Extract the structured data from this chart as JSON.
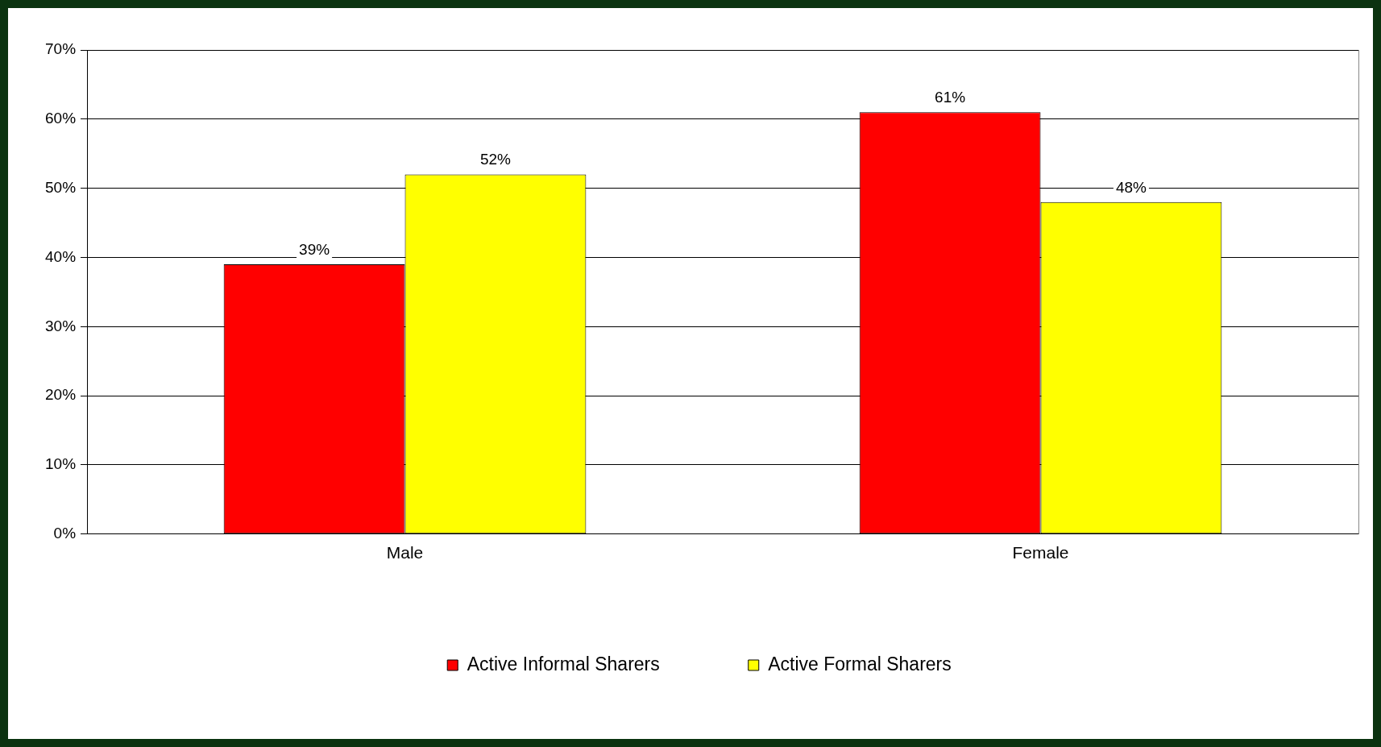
{
  "chart_data": {
    "type": "bar",
    "categories": [
      "Male",
      "Female"
    ],
    "series": [
      {
        "name": "Active Informal Sharers",
        "color": "#ff0000",
        "values": [
          39,
          61
        ],
        "value_labels": [
          "39%",
          "61%"
        ]
      },
      {
        "name": "Active Formal Sharers",
        "color": "#ffff00",
        "values": [
          52,
          48
        ],
        "value_labels": [
          "52%",
          "48%"
        ]
      }
    ],
    "ylim": [
      0,
      70
    ],
    "yticks": [
      {
        "value": 0,
        "label": "0%"
      },
      {
        "value": 10,
        "label": "10%"
      },
      {
        "value": 20,
        "label": "20%"
      },
      {
        "value": 30,
        "label": "30%"
      },
      {
        "value": 40,
        "label": "40%"
      },
      {
        "value": 50,
        "label": "50%"
      },
      {
        "value": 60,
        "label": "60%"
      },
      {
        "value": 70,
        "label": "70%"
      }
    ],
    "grid": "y",
    "legend": "bottom"
  }
}
